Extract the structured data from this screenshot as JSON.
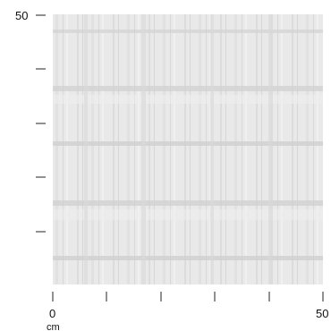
{
  "specimen": {
    "description_colors": {
      "base": "#e8e8e8",
      "light_band": "#f1f1f1",
      "dark_band": "#cfcfcf"
    }
  },
  "axes": {
    "y_axis": {
      "top_label": "50",
      "ticks": 5
    },
    "x_axis": {
      "start_label": "0",
      "end_label": "50",
      "unit": "cm",
      "ticks": 6
    }
  }
}
